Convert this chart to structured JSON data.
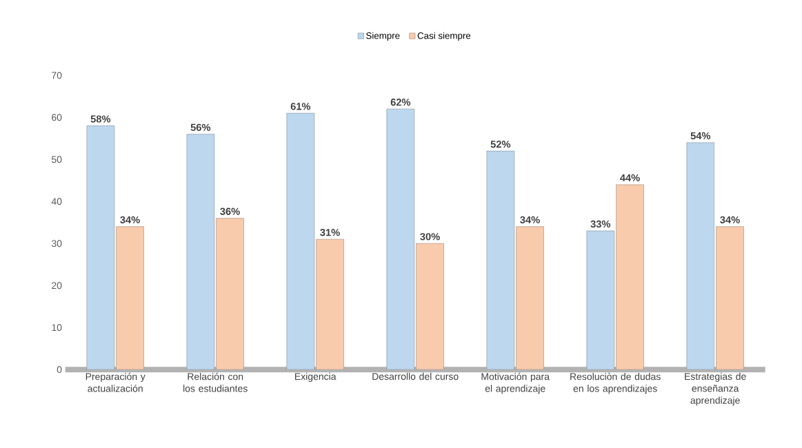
{
  "chart_data": {
    "type": "bar",
    "categories": [
      "Preparación y actualización",
      "Relación con los estudiantes",
      "Exigencia",
      "Desarrollo del curso",
      "Motivación para el aprendizaje",
      "Resoluciòn de dudas en los aprendizajes",
      "Estrategias de enseñanza aprendizaje"
    ],
    "series": [
      {
        "name": "Siempre",
        "color": "#bdd7ee",
        "values": [
          58,
          56,
          61,
          62,
          52,
          33,
          54
        ],
        "value_labels": [
          "58%",
          "56%",
          "61%",
          "62%",
          "52%",
          "33%",
          "54%"
        ]
      },
      {
        "name": "Casi siempre",
        "color": "#f8cbad",
        "values": [
          34,
          36,
          31,
          30,
          34,
          44,
          34
        ],
        "value_labels": [
          "34%",
          "36%",
          "31%",
          "30%",
          "34%",
          "44%",
          "34%"
        ]
      }
    ],
    "ylim": [
      0,
      70
    ],
    "yticks": [
      0,
      10,
      20,
      30,
      40,
      50,
      60,
      70
    ],
    "grid": false,
    "legend": "top"
  }
}
